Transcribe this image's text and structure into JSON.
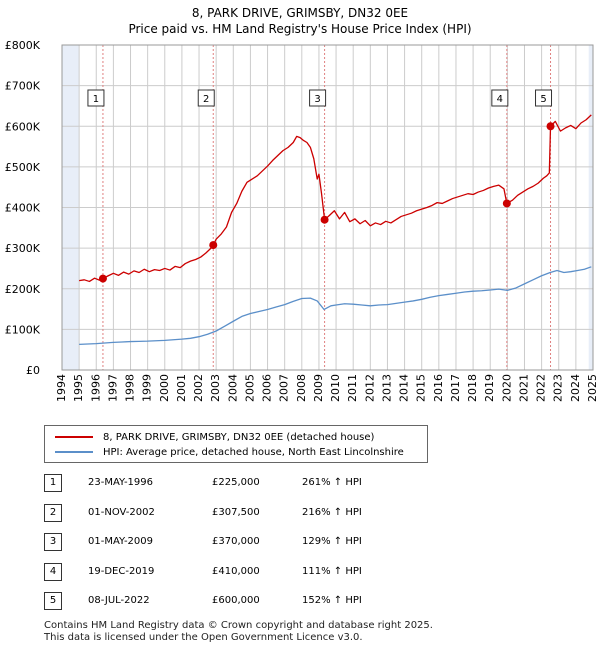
{
  "title": "8, PARK DRIVE, GRIMSBY, DN32 0EE",
  "subtitle": "Price paid vs. HM Land Registry's House Price Index (HPI)",
  "legend": {
    "property_label": "8, PARK DRIVE, GRIMSBY, DN32 0EE (detached house)",
    "hpi_label": "HPI: Average price, detached house, North East Lincolnshire"
  },
  "transactions": [
    {
      "num": "1",
      "date": "23-MAY-1996",
      "price": "£225,000",
      "hpi": "261% ↑ HPI"
    },
    {
      "num": "2",
      "date": "01-NOV-2002",
      "price": "£307,500",
      "hpi": "216% ↑ HPI"
    },
    {
      "num": "3",
      "date": "01-MAY-2009",
      "price": "£370,000",
      "hpi": "129% ↑ HPI"
    },
    {
      "num": "4",
      "date": "19-DEC-2019",
      "price": "£410,000",
      "hpi": "111% ↑ HPI"
    },
    {
      "num": "5",
      "date": "08-JUL-2022",
      "price": "£600,000",
      "hpi": "152% ↑ HPI"
    }
  ],
  "footer": {
    "line1": "Contains HM Land Registry data © Crown copyright and database right 2025.",
    "line2": "This data is licensed under the Open Government Licence v3.0."
  },
  "colors": {
    "property": "#cc0000",
    "hpi": "#5b8fc9",
    "shade": "#e8eef8",
    "vline": "#e08080",
    "grid": "#cccccc"
  },
  "chart_data": {
    "type": "line",
    "x_axis": {
      "min": 1994.0,
      "max": 2025.0,
      "ticks": [
        1994,
        1995,
        1996,
        1997,
        1998,
        1999,
        2000,
        2001,
        2002,
        2003,
        2004,
        2005,
        2006,
        2007,
        2008,
        2009,
        2010,
        2011,
        2012,
        2013,
        2014,
        2015,
        2016,
        2017,
        2018,
        2019,
        2020,
        2021,
        2022,
        2023,
        2024,
        2025
      ],
      "tick_labels": [
        "1994",
        "1995",
        "1996",
        "1997",
        "1998",
        "1999",
        "2000",
        "2001",
        "2002",
        "2003",
        "2004",
        "2005",
        "2006",
        "2007",
        "2008",
        "2009",
        "2010",
        "2011",
        "2012",
        "2013",
        "2014",
        "2015",
        "2016",
        "2017",
        "2018",
        "2019",
        "2020",
        "2021",
        "2022",
        "2023",
        "2024",
        "2025"
      ]
    },
    "y_axis": {
      "min": 0,
      "max": 800000,
      "ticks": [
        0,
        100000,
        200000,
        300000,
        400000,
        500000,
        600000,
        700000,
        800000
      ],
      "tick_labels": [
        "£0",
        "£100K",
        "£200K",
        "£300K",
        "£400K",
        "£500K",
        "£600K",
        "£700K",
        "£800K"
      ]
    },
    "grid": true,
    "shaded_ranges": [
      [
        1994.0,
        1995.0
      ],
      [
        2024.75,
        2025.0
      ]
    ],
    "sales": [
      {
        "label": "1",
        "x": 1996.39,
        "y": 225000
      },
      {
        "label": "2",
        "x": 2002.83,
        "y": 307500
      },
      {
        "label": "3",
        "x": 2009.33,
        "y": 370000
      },
      {
        "label": "4",
        "x": 2019.97,
        "y": 410000
      },
      {
        "label": "5",
        "x": 2022.52,
        "y": 600000
      }
    ],
    "series": [
      {
        "name": "8, PARK DRIVE, GRIMSBY, DN32 0EE (detached house)",
        "x": [
          1995.0,
          1995.3,
          1995.6,
          1995.9,
          1996.2,
          1996.39,
          1996.7,
          1997.0,
          1997.3,
          1997.6,
          1997.9,
          1998.2,
          1998.5,
          1998.8,
          1999.1,
          1999.4,
          1999.7,
          2000.0,
          2000.3,
          2000.6,
          2000.9,
          2001.2,
          2001.5,
          2001.8,
          2002.1,
          2002.4,
          2002.7,
          2002.83,
          2003.0,
          2003.3,
          2003.6,
          2003.9,
          2004.2,
          2004.5,
          2004.8,
          2005.1,
          2005.4,
          2005.7,
          2006.0,
          2006.3,
          2006.6,
          2006.9,
          2007.2,
          2007.5,
          2007.7,
          2007.9,
          2008.1,
          2008.3,
          2008.5,
          2008.7,
          2008.9,
          2009.0,
          2009.15,
          2009.33,
          2009.6,
          2009.9,
          2010.2,
          2010.5,
          2010.8,
          2011.1,
          2011.4,
          2011.7,
          2012.0,
          2012.3,
          2012.6,
          2012.9,
          2013.2,
          2013.5,
          2013.8,
          2014.1,
          2014.4,
          2014.7,
          2015.0,
          2015.3,
          2015.6,
          2015.9,
          2016.2,
          2016.5,
          2016.8,
          2017.1,
          2017.4,
          2017.7,
          2018.0,
          2018.3,
          2018.6,
          2018.9,
          2019.2,
          2019.5,
          2019.8,
          2019.97,
          2020.3,
          2020.6,
          2020.9,
          2021.2,
          2021.5,
          2021.8,
          2022.1,
          2022.3,
          2022.45,
          2022.52,
          2022.8,
          2023.1,
          2023.4,
          2023.7,
          2024.0,
          2024.3,
          2024.6,
          2024.9
        ],
        "y": [
          220000,
          222000,
          218000,
          226000,
          221000,
          225000,
          232000,
          238000,
          233000,
          241000,
          236000,
          244000,
          240000,
          248000,
          242000,
          247000,
          245000,
          250000,
          246000,
          255000,
          252000,
          262000,
          268000,
          272000,
          278000,
          288000,
          300000,
          307500,
          322000,
          335000,
          352000,
          388000,
          410000,
          440000,
          462000,
          470000,
          478000,
          490000,
          502000,
          516000,
          528000,
          540000,
          548000,
          560000,
          575000,
          572000,
          565000,
          560000,
          548000,
          520000,
          470000,
          482000,
          435000,
          370000,
          380000,
          392000,
          372000,
          388000,
          365000,
          372000,
          360000,
          368000,
          355000,
          362000,
          358000,
          366000,
          362000,
          370000,
          378000,
          382000,
          386000,
          392000,
          396000,
          400000,
          405000,
          412000,
          410000,
          416000,
          422000,
          426000,
          430000,
          434000,
          432000,
          438000,
          442000,
          448000,
          452000,
          455000,
          446000,
          410000,
          418000,
          430000,
          438000,
          446000,
          452000,
          460000,
          472000,
          478000,
          485000,
          600000,
          612000,
          588000,
          596000,
          602000,
          594000,
          608000,
          616000,
          628000
        ]
      },
      {
        "name": "HPI: Average price, detached house, North East Lincolnshire",
        "x": [
          1995.0,
          1995.5,
          1996.0,
          1996.5,
          1997.0,
          1997.5,
          1998.0,
          1998.5,
          1999.0,
          1999.5,
          2000.0,
          2000.5,
          2001.0,
          2001.5,
          2002.0,
          2002.5,
          2003.0,
          2003.5,
          2004.0,
          2004.5,
          2005.0,
          2005.5,
          2006.0,
          2006.5,
          2007.0,
          2007.5,
          2008.0,
          2008.5,
          2008.9,
          2009.3,
          2009.7,
          2010.0,
          2010.5,
          2011.0,
          2011.5,
          2012.0,
          2012.5,
          2013.0,
          2013.5,
          2014.0,
          2014.5,
          2015.0,
          2015.5,
          2016.0,
          2016.5,
          2017.0,
          2017.5,
          2018.0,
          2018.5,
          2019.0,
          2019.5,
          2020.0,
          2020.5,
          2021.0,
          2021.5,
          2022.0,
          2022.5,
          2022.9,
          2023.3,
          2023.7,
          2024.1,
          2024.5,
          2024.9
        ],
        "y": [
          63000,
          64000,
          65000,
          66500,
          68000,
          69000,
          70000,
          70500,
          71000,
          72000,
          73000,
          74500,
          76000,
          78000,
          82000,
          88000,
          96000,
          108000,
          120000,
          132000,
          139000,
          144000,
          149000,
          155000,
          161000,
          169000,
          176000,
          177000,
          170000,
          149000,
          158000,
          160000,
          163000,
          162000,
          160000,
          158000,
          160000,
          161000,
          164000,
          167000,
          170000,
          174000,
          179000,
          183000,
          186000,
          189000,
          192000,
          194000,
          195000,
          197000,
          199000,
          196000,
          202000,
          212000,
          222000,
          232000,
          240000,
          245000,
          240000,
          242000,
          245000,
          248000,
          254000
        ]
      }
    ]
  }
}
